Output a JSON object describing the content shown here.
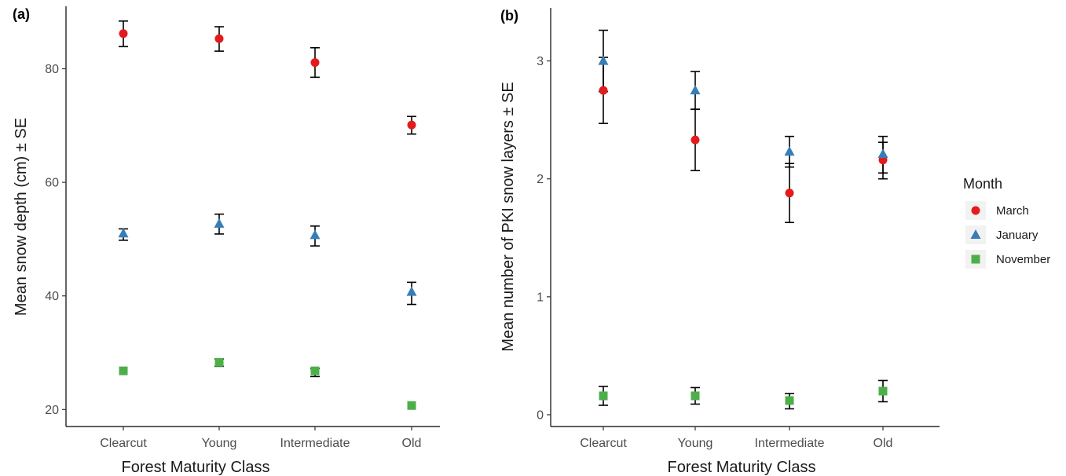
{
  "legend": {
    "title": "Month",
    "position": "right",
    "entries": [
      {
        "label": "March",
        "color": "#e41a1c",
        "shape": "circle"
      },
      {
        "label": "January",
        "color": "#377eb8",
        "shape": "triangle"
      },
      {
        "label": "November",
        "color": "#4daf4a",
        "shape": "square"
      }
    ]
  },
  "chart_data": [
    {
      "type": "scatter",
      "panel": "(a)",
      "title": "",
      "xlabel": "Forest Maturity Class",
      "ylabel": "Mean snow depth (cm) ± SE",
      "categories": [
        "Clearcut",
        "Young",
        "Intermediate",
        "Old"
      ],
      "ylim": [
        17,
        91
      ],
      "yticks": [
        20,
        40,
        60,
        80
      ],
      "grid": false,
      "series": [
        {
          "name": "March",
          "color": "#e41a1c",
          "shape": "circle",
          "values": [
            86.2,
            85.3,
            81.1,
            70.1
          ],
          "lower": [
            83.9,
            83.1,
            78.5,
            68.5
          ],
          "upper": [
            88.4,
            87.4,
            83.7,
            71.6
          ]
        },
        {
          "name": "January",
          "color": "#377eb8",
          "shape": "triangle",
          "values": [
            51.0,
            52.7,
            50.7,
            40.7
          ],
          "lower": [
            49.8,
            50.9,
            48.8,
            38.5
          ],
          "upper": [
            51.8,
            54.4,
            52.3,
            42.4
          ]
        },
        {
          "name": "November",
          "color": "#4daf4a",
          "shape": "square",
          "values": [
            26.8,
            28.3,
            26.8,
            20.7
          ],
          "lower": [
            26.8,
            27.6,
            25.8,
            20.7
          ],
          "upper": [
            26.8,
            28.9,
            27.2,
            20.7
          ]
        }
      ]
    },
    {
      "type": "scatter",
      "panel": "(b)",
      "title": "",
      "xlabel": "Forest Maturity Class",
      "ylabel": "Mean number of PKI snow layers ± SE",
      "categories": [
        "Clearcut",
        "Young",
        "Intermediate",
        "Old"
      ],
      "ylim": [
        -0.1,
        3.45
      ],
      "yticks": [
        0,
        1,
        2,
        3
      ],
      "grid": false,
      "series": [
        {
          "name": "March",
          "color": "#e41a1c",
          "shape": "circle",
          "values": [
            2.75,
            2.33,
            1.88,
            2.16
          ],
          "lower": [
            2.47,
            2.07,
            1.63,
            2.05
          ],
          "upper": [
            3.03,
            2.59,
            2.13,
            2.31
          ]
        },
        {
          "name": "January",
          "color": "#377eb8",
          "shape": "triangle",
          "values": [
            3.0,
            2.75,
            2.23,
            2.21
          ],
          "lower": [
            2.74,
            2.59,
            2.1,
            2.0
          ],
          "upper": [
            3.26,
            2.91,
            2.36,
            2.36
          ]
        },
        {
          "name": "November",
          "color": "#4daf4a",
          "shape": "square",
          "values": [
            0.16,
            0.16,
            0.12,
            0.2
          ],
          "lower": [
            0.08,
            0.09,
            0.05,
            0.11
          ],
          "upper": [
            0.24,
            0.23,
            0.18,
            0.29
          ]
        }
      ]
    }
  ]
}
